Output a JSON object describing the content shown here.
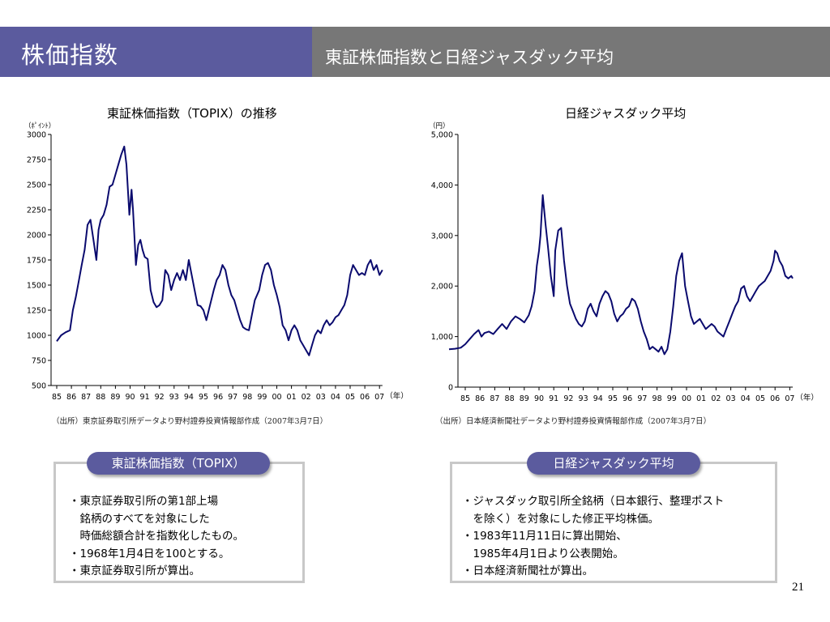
{
  "header": {
    "title": "株価指数",
    "subtitle": "東証株価指数と日経ジャスダック平均"
  },
  "charts": {
    "left": {
      "title": "東証株価指数（TOPIX）の推移",
      "unit": "（ﾎﾟｲﾝﾄ）",
      "xunit": "（年）",
      "source": "（出所）東京証券取引所データより野村證券投資情報部作成（2007年3月7日）"
    },
    "right": {
      "title": "日経ジャスダック平均",
      "unit": "（円）",
      "xunit": "（年）",
      "source": "（出所）日本経済新聞社データより野村證券投資情報部作成（2007年3月7日）"
    }
  },
  "chart_data": [
    {
      "type": "line",
      "title": "東証株価指数（TOPIX）の推移",
      "ylabel": "（ﾎﾟｲﾝﾄ）",
      "xlabel": "（年）",
      "ylim": [
        500,
        3000
      ],
      "yticks": [
        500,
        750,
        1000,
        1250,
        1500,
        1750,
        2000,
        2250,
        2500,
        2750,
        3000
      ],
      "ytick_labels": [
        "500",
        "750",
        "1000",
        "1250",
        "1500",
        "1750",
        "2000",
        "2250",
        "2500",
        "2750",
        "3000"
      ],
      "xlim": [
        1985,
        2007.2
      ],
      "xticks": [
        "85",
        "86",
        "87",
        "88",
        "89",
        "90",
        "91",
        "92",
        "93",
        "94",
        "95",
        "96",
        "97",
        "98",
        "99",
        "00",
        "01",
        "02",
        "03",
        "04",
        "05",
        "06",
        "07"
      ],
      "grid": false,
      "series": [
        {
          "color": "#0a0a6e",
          "x": [
            1985.0,
            1985.3,
            1985.6,
            1985.9,
            1986.1,
            1986.3,
            1986.5,
            1986.7,
            1986.9,
            1987.1,
            1987.3,
            1987.5,
            1987.7,
            1987.85,
            1988.0,
            1988.2,
            1988.4,
            1988.6,
            1988.8,
            1989.0,
            1989.2,
            1989.4,
            1989.6,
            1989.75,
            1989.95,
            1990.1,
            1990.2,
            1990.4,
            1990.55,
            1990.7,
            1990.85,
            1991.0,
            1991.2,
            1991.4,
            1991.6,
            1991.8,
            1992.0,
            1992.2,
            1992.4,
            1992.6,
            1992.8,
            1993.0,
            1993.2,
            1993.4,
            1993.6,
            1993.8,
            1994.0,
            1994.2,
            1994.4,
            1994.6,
            1994.8,
            1995.0,
            1995.2,
            1995.45,
            1995.7,
            1995.9,
            1996.1,
            1996.3,
            1996.5,
            1996.7,
            1996.9,
            1997.1,
            1997.3,
            1997.5,
            1997.7,
            1997.9,
            1998.1,
            1998.3,
            1998.5,
            1998.8,
            1999.0,
            1999.2,
            1999.4,
            1999.6,
            1999.8,
            2000.0,
            2000.2,
            2000.4,
            2000.6,
            2000.8,
            2001.0,
            2001.2,
            2001.4,
            2001.6,
            2001.8,
            2002.0,
            2002.2,
            2002.4,
            2002.6,
            2002.8,
            2003.0,
            2003.2,
            2003.4,
            2003.6,
            2003.8,
            2004.0,
            2004.2,
            2004.4,
            2004.6,
            2004.8,
            2005.0,
            2005.2,
            2005.4,
            2005.6,
            2005.8,
            2006.0,
            2006.2,
            2006.4,
            2006.6,
            2006.8,
            2007.0,
            2007.2
          ],
          "y": [
            940,
            1000,
            1030,
            1050,
            1250,
            1380,
            1540,
            1700,
            1850,
            2100,
            2150,
            1950,
            1750,
            2050,
            2150,
            2200,
            2300,
            2480,
            2500,
            2600,
            2700,
            2800,
            2880,
            2700,
            2200,
            2450,
            2250,
            1700,
            1900,
            1950,
            1850,
            1780,
            1760,
            1450,
            1330,
            1280,
            1300,
            1350,
            1650,
            1600,
            1450,
            1550,
            1620,
            1550,
            1650,
            1550,
            1750,
            1600,
            1450,
            1300,
            1290,
            1250,
            1150,
            1300,
            1450,
            1550,
            1600,
            1700,
            1650,
            1500,
            1400,
            1350,
            1250,
            1150,
            1080,
            1060,
            1050,
            1200,
            1350,
            1450,
            1600,
            1700,
            1720,
            1650,
            1500,
            1400,
            1280,
            1100,
            1050,
            950,
            1050,
            1100,
            1050,
            950,
            900,
            850,
            800,
            900,
            1000,
            1050,
            1020,
            1100,
            1150,
            1100,
            1130,
            1180,
            1200,
            1250,
            1300,
            1400,
            1600,
            1700,
            1650,
            1600,
            1620,
            1600,
            1700,
            1750,
            1650,
            1700,
            1600,
            1650
          ]
        }
      ]
    },
    {
      "type": "line",
      "title": "日経ジャスダック平均",
      "ylabel": "（円）",
      "xlabel": "（年）",
      "ylim": [
        0,
        5000
      ],
      "yticks": [
        0,
        1000,
        2000,
        3000,
        4000,
        5000
      ],
      "ytick_labels": [
        "0",
        "1,000",
        "2,000",
        "3,000",
        "4,000",
        "5,000"
      ],
      "xlim": [
        1985,
        2007.2
      ],
      "xticks": [
        "85",
        "86",
        "87",
        "88",
        "89",
        "90",
        "91",
        "92",
        "93",
        "94",
        "95",
        "96",
        "97",
        "98",
        "99",
        "00",
        "01",
        "02",
        "03",
        "04",
        "05",
        "06",
        "07"
      ],
      "grid": false,
      "series": [
        {
          "color": "#0a0a6e",
          "x": [
            1983.9,
            1984.3,
            1984.7,
            1985.0,
            1985.3,
            1985.6,
            1985.9,
            1986.1,
            1986.3,
            1986.6,
            1986.9,
            1987.2,
            1987.5,
            1987.8,
            1988.1,
            1988.4,
            1988.7,
            1989.0,
            1989.3,
            1989.5,
            1989.7,
            1989.85,
            1990.0,
            1990.1,
            1990.25,
            1990.45,
            1990.6,
            1990.8,
            1991.0,
            1991.1,
            1991.3,
            1991.5,
            1991.7,
            1991.9,
            1992.1,
            1992.3,
            1992.5,
            1992.7,
            1992.9,
            1993.1,
            1993.3,
            1993.5,
            1993.7,
            1993.9,
            1994.1,
            1994.3,
            1994.5,
            1994.7,
            1994.9,
            1995.1,
            1995.3,
            1995.5,
            1995.7,
            1995.9,
            1996.1,
            1996.3,
            1996.5,
            1996.7,
            1996.9,
            1997.1,
            1997.3,
            1997.5,
            1997.7,
            1997.9,
            1998.1,
            1998.3,
            1998.5,
            1998.7,
            1998.9,
            1999.1,
            1999.3,
            1999.5,
            1999.7,
            1999.9,
            2000.1,
            2000.3,
            2000.5,
            2000.7,
            2000.9,
            2001.1,
            2001.3,
            2001.5,
            2001.7,
            2001.9,
            2002.1,
            2002.3,
            2002.5,
            2002.7,
            2002.9,
            2003.1,
            2003.3,
            2003.5,
            2003.7,
            2003.9,
            2004.1,
            2004.3,
            2004.5,
            2004.7,
            2004.9,
            2005.1,
            2005.3,
            2005.5,
            2005.7,
            2005.9,
            2006.0,
            2006.15,
            2006.3,
            2006.5,
            2006.7,
            2006.9,
            2007.1,
            2007.2
          ],
          "y": [
            750,
            760,
            780,
            850,
            950,
            1050,
            1130,
            1000,
            1070,
            1100,
            1050,
            1150,
            1250,
            1150,
            1300,
            1400,
            1350,
            1280,
            1420,
            1600,
            1900,
            2400,
            2700,
            3000,
            3800,
            3200,
            2800,
            2200,
            1800,
            2700,
            3100,
            3150,
            2500,
            2000,
            1650,
            1500,
            1350,
            1250,
            1200,
            1300,
            1550,
            1650,
            1500,
            1400,
            1650,
            1800,
            1900,
            1850,
            1700,
            1450,
            1300,
            1400,
            1450,
            1550,
            1600,
            1750,
            1700,
            1550,
            1300,
            1100,
            950,
            750,
            800,
            750,
            700,
            800,
            650,
            750,
            1100,
            1600,
            2200,
            2500,
            2650,
            2000,
            1700,
            1400,
            1250,
            1300,
            1350,
            1250,
            1150,
            1200,
            1250,
            1200,
            1100,
            1050,
            1000,
            1150,
            1300,
            1450,
            1600,
            1700,
            1950,
            2000,
            1800,
            1700,
            1800,
            1900,
            2000,
            2050,
            2100,
            2200,
            2300,
            2500,
            2700,
            2650,
            2500,
            2400,
            2200,
            2150,
            2200,
            2150
          ]
        }
      ]
    }
  ],
  "panels": {
    "left": {
      "label": "東証株価指数（TOPIX）",
      "lines": [
        "・東京証券取引所の第1部上場",
        "　銘柄のすべてを対象にした",
        "　時価総額合計を指数化したもの。",
        "・1968年1月4日を100とする。",
        "・東京証券取引所が算出。"
      ]
    },
    "right": {
      "label": "日経ジャスダック平均",
      "lines": [
        "・ジャスダック取引所全銘柄（日本銀行、整理ポスト",
        "　を除く）を対象にした修正平均株価。",
        "・1983年11月11日に算出開始、",
        "　1985年4月1日より公表開始。",
        "・日本経済新聞社が算出。"
      ]
    }
  },
  "page": {
    "number": "21"
  }
}
